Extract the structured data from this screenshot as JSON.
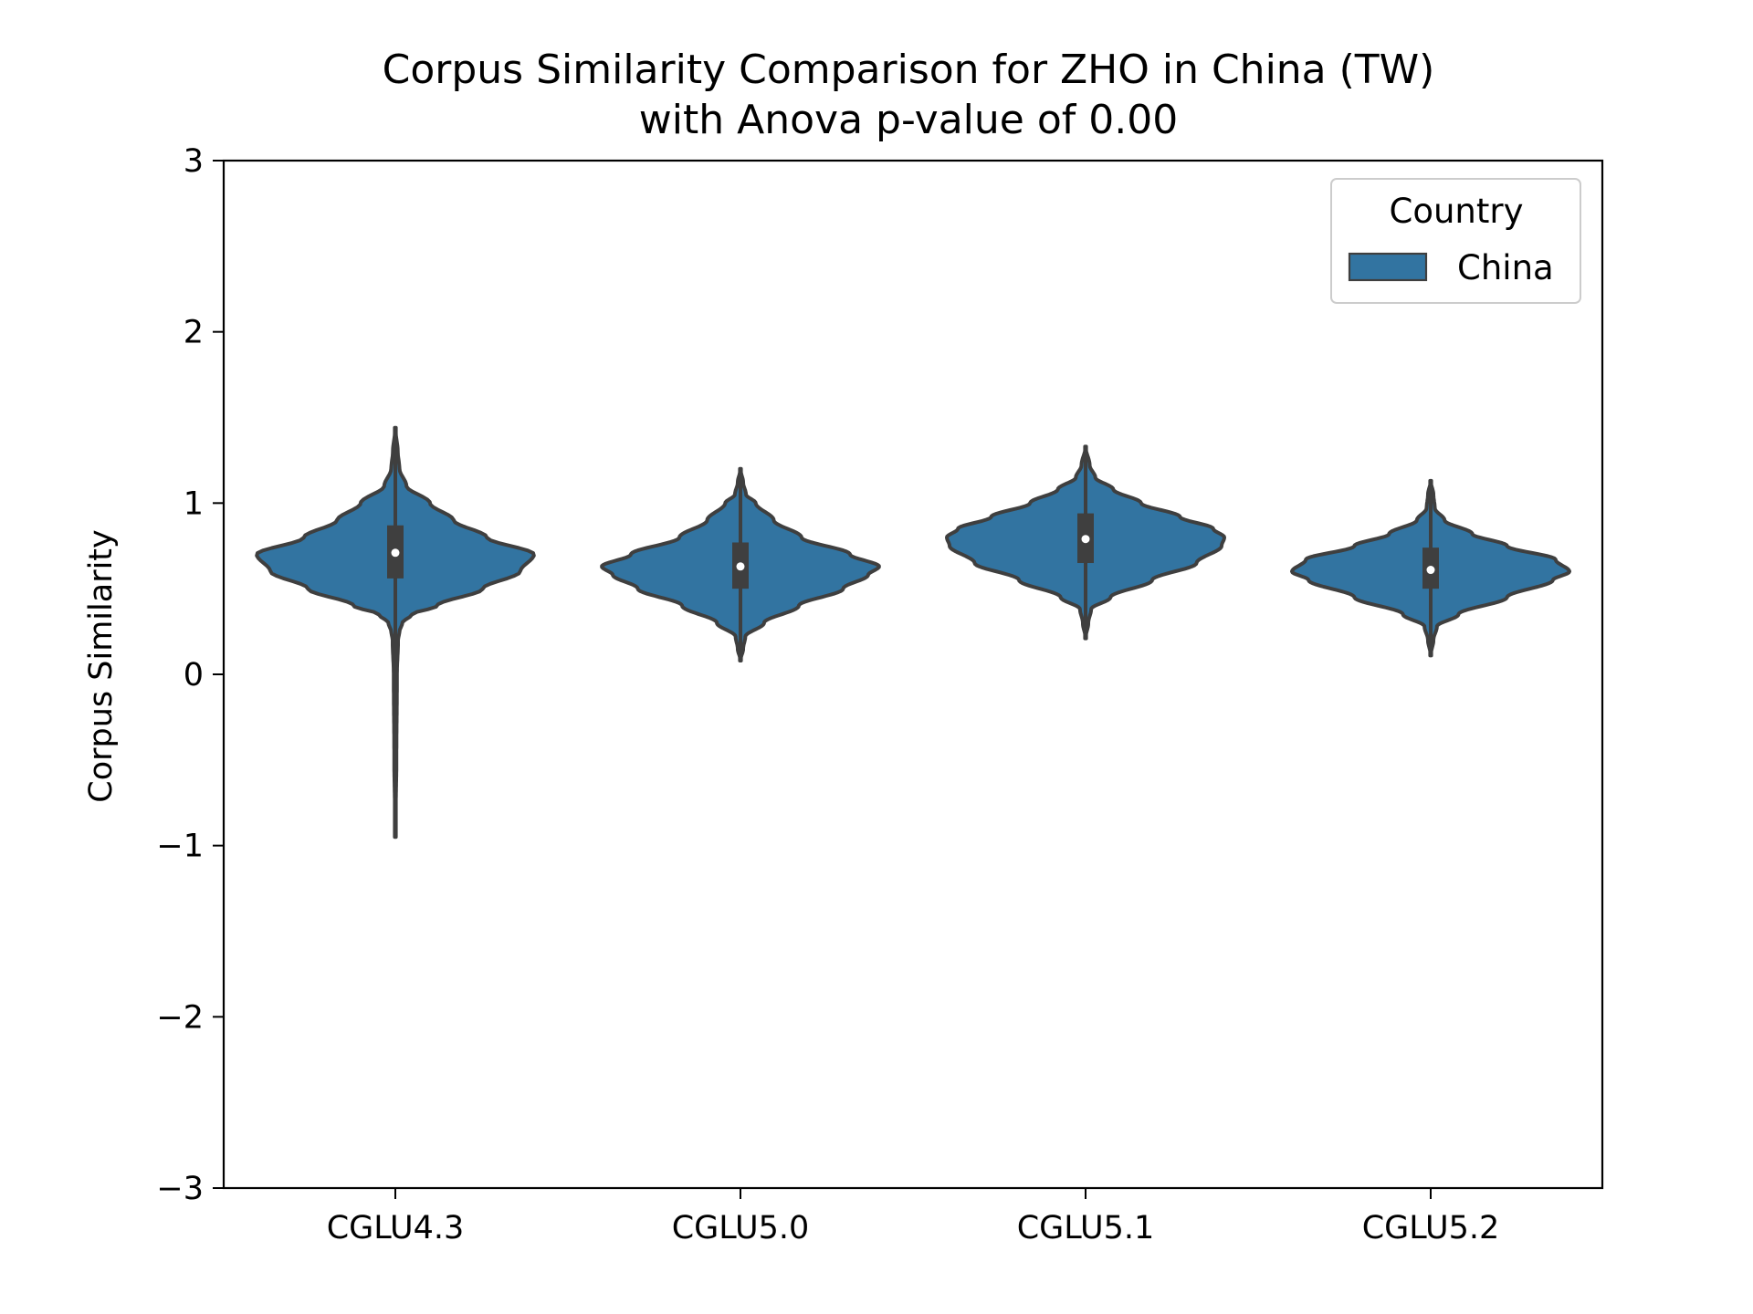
{
  "chart_data": {
    "type": "violin",
    "title_lines": [
      "Corpus Similarity Comparison for ZHO in China (TW)",
      "with Anova p-value of 0.00"
    ],
    "xlabel": "",
    "ylabel": "Corpus Similarity",
    "ylim": [
      -3,
      3
    ],
    "yticks": [
      3,
      2,
      1,
      0,
      -1,
      -2,
      -3
    ],
    "ytick_labels": [
      "3",
      "2",
      "1",
      "0",
      "−1",
      "−2",
      "−3"
    ],
    "categories": [
      "CGLU4.3",
      "CGLU5.0",
      "CGLU5.1",
      "CGLU5.2"
    ],
    "grid": false,
    "legend": {
      "title": "Country",
      "position": "top-right",
      "entries": [
        {
          "label": "China",
          "color": "#3274a1"
        }
      ]
    },
    "colors": {
      "fill": "#3274a1",
      "edge": "#3f3f3f",
      "box": "#3f3f3f",
      "median": "#ffffff"
    },
    "series": [
      {
        "name": "China",
        "values": [
          {
            "category": "CGLU4.3",
            "min": -0.95,
            "max": 1.44,
            "q1": 0.56,
            "median": 0.71,
            "q3": 0.87,
            "density": [
              [
                -0.95,
                0.0
              ],
              [
                -0.5,
                0.008
              ],
              [
                0.0,
                0.012
              ],
              [
                0.2,
                0.02
              ],
              [
                0.25,
                0.03
              ],
              [
                0.3,
                0.05
              ],
              [
                0.35,
                0.12
              ],
              [
                0.4,
                0.3
              ],
              [
                0.5,
                0.63
              ],
              [
                0.6,
                0.9
              ],
              [
                0.7,
                1.0
              ],
              [
                0.8,
                0.66
              ],
              [
                0.9,
                0.42
              ],
              [
                1.0,
                0.25
              ],
              [
                1.1,
                0.08
              ],
              [
                1.2,
                0.03
              ],
              [
                1.3,
                0.018
              ],
              [
                1.44,
                0.0
              ]
            ]
          },
          {
            "category": "CGLU5.0",
            "min": 0.08,
            "max": 1.2,
            "q1": 0.5,
            "median": 0.63,
            "q3": 0.77,
            "density": [
              [
                0.08,
                0.0
              ],
              [
                0.15,
                0.02
              ],
              [
                0.22,
                0.035
              ],
              [
                0.3,
                0.17
              ],
              [
                0.4,
                0.42
              ],
              [
                0.5,
                0.74
              ],
              [
                0.58,
                0.92
              ],
              [
                0.63,
                1.0
              ],
              [
                0.7,
                0.79
              ],
              [
                0.8,
                0.44
              ],
              [
                0.9,
                0.24
              ],
              [
                1.0,
                0.11
              ],
              [
                1.05,
                0.04
              ],
              [
                1.12,
                0.02
              ],
              [
                1.2,
                0.0
              ]
            ]
          },
          {
            "category": "CGLU5.1",
            "min": 0.21,
            "max": 1.33,
            "q1": 0.65,
            "median": 0.79,
            "q3": 0.94,
            "density": [
              [
                0.21,
                0.0
              ],
              [
                0.3,
                0.02
              ],
              [
                0.38,
                0.04
              ],
              [
                0.45,
                0.18
              ],
              [
                0.55,
                0.48
              ],
              [
                0.65,
                0.8
              ],
              [
                0.75,
                0.98
              ],
              [
                0.8,
                1.0
              ],
              [
                0.85,
                0.92
              ],
              [
                0.92,
                0.68
              ],
              [
                1.0,
                0.4
              ],
              [
                1.08,
                0.2
              ],
              [
                1.15,
                0.07
              ],
              [
                1.22,
                0.03
              ],
              [
                1.33,
                0.0
              ]
            ]
          },
          {
            "category": "CGLU5.2",
            "min": 0.11,
            "max": 1.13,
            "q1": 0.5,
            "median": 0.61,
            "q3": 0.74,
            "density": [
              [
                0.11,
                0.0
              ],
              [
                0.2,
                0.02
              ],
              [
                0.28,
                0.045
              ],
              [
                0.35,
                0.2
              ],
              [
                0.45,
                0.55
              ],
              [
                0.55,
                0.88
              ],
              [
                0.6,
                1.0
              ],
              [
                0.67,
                0.9
              ],
              [
                0.75,
                0.55
              ],
              [
                0.82,
                0.3
              ],
              [
                0.9,
                0.1
              ],
              [
                0.97,
                0.03
              ],
              [
                1.05,
                0.02
              ],
              [
                1.13,
                0.0
              ]
            ]
          }
        ]
      }
    ]
  }
}
